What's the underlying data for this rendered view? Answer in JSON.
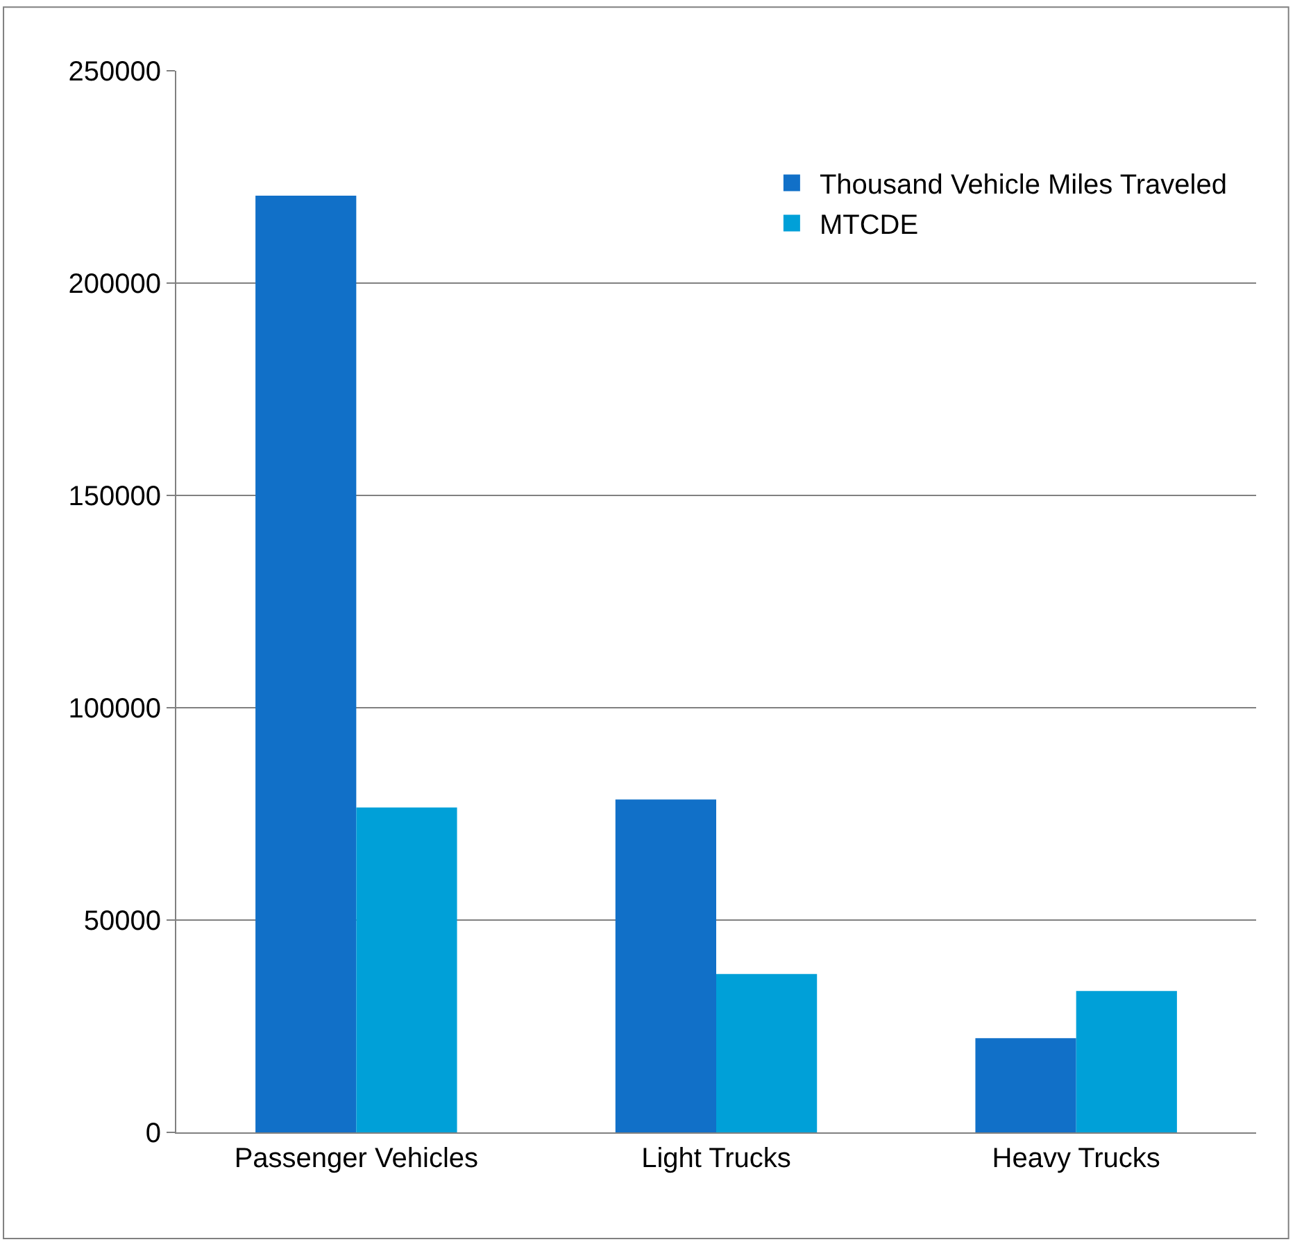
{
  "chart_data": {
    "type": "bar",
    "categories": [
      "Passenger Vehicles",
      "Light Trucks",
      "Heavy Trucks"
    ],
    "series": [
      {
        "name": "Thousand Vehicle Miles Traveled",
        "color": "#1170c8",
        "values": [
          220600,
          78400,
          22200
        ]
      },
      {
        "name": "MTCDE",
        "color": "#00a0d8",
        "values": [
          76500,
          37300,
          33300
        ]
      }
    ],
    "ylim": [
      0,
      250000
    ],
    "yticks": [
      0,
      50000,
      100000,
      150000,
      200000,
      250000
    ],
    "grid": "y",
    "legend": "top right"
  }
}
